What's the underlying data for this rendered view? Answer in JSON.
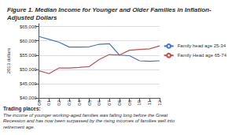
{
  "chart_data": {
    "type": "line",
    "title": "Figure 1. Median Income for Younger and Older Families in Inflation- Adjusted Dollars",
    "ylabel": "2013 dollars",
    "annotations": [
      "Trading places:",
      "The income of younger working-aged families was falling long before the Great\nRecession and has now been surpassed by the rising incomes of families well into retirement age."
    ],
    "categories": [
      "00",
      "01",
      "02",
      "03",
      "04",
      "05",
      "06",
      "07",
      "08",
      "09",
      "10",
      "11",
      "12"
    ],
    "series": [
      {
        "name": "Family head age 25-34",
        "color": "#4472C4",
        "values": [
          61500,
          60500,
          59500,
          57800,
          57800,
          57900,
          58800,
          59000,
          55000,
          54800,
          53000,
          52800,
          53000
        ]
      },
      {
        "name": "Family Head age 65-74",
        "color": "#C0504D",
        "values": [
          49500,
          48500,
          50500,
          50500,
          50700,
          51000,
          53500,
          55200,
          55000,
          56700,
          57000,
          57200,
          58200
        ]
      }
    ],
    "ylim": [
      40000,
      66000
    ],
    "yticks": [
      {
        "value": 40000,
        "label": "$40,000"
      },
      {
        "value": 45000,
        "label": "$45,000"
      },
      {
        "value": 50000,
        "label": "$50,000"
      },
      {
        "value": 55000,
        "label": "$55,000"
      },
      {
        "value": 60000,
        "label": "$60,000"
      },
      {
        "value": 65000,
        "label": "$65,000"
      }
    ],
    "grid": true,
    "legend": "right"
  }
}
